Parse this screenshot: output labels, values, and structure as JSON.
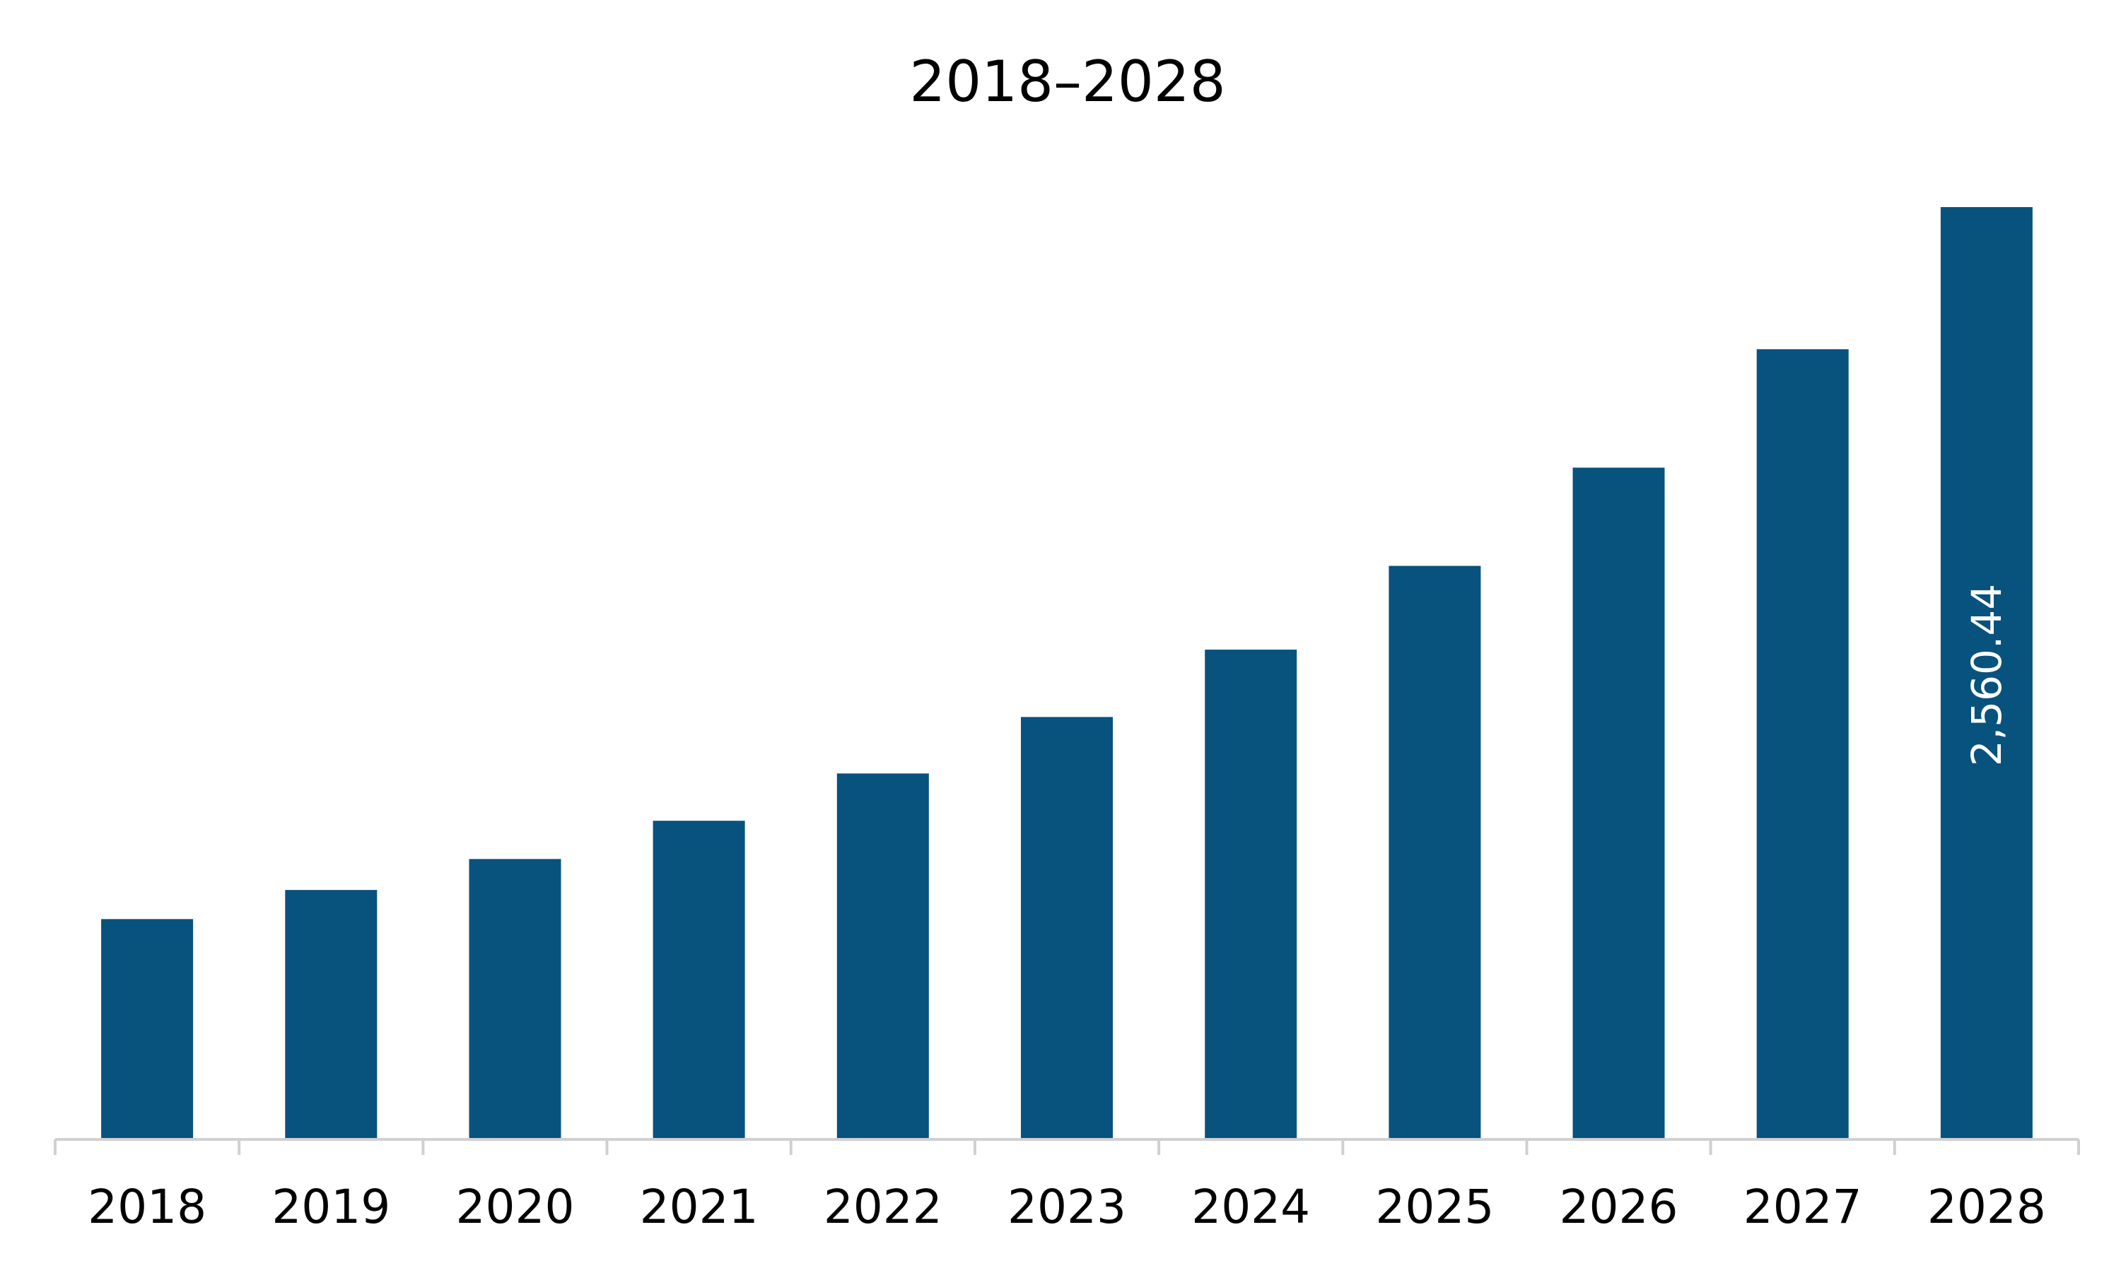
{
  "colors": {
    "bar": "#08527E",
    "axis": "#D0D0D0",
    "text": "#000000",
    "data_label": "#FFFFFF"
  },
  "chart_data": {
    "type": "bar",
    "title": "2018–2028",
    "xlabel": "",
    "ylabel": "",
    "categories": [
      "2018",
      "2019",
      "2020",
      "2021",
      "2022",
      "2023",
      "2024",
      "2025",
      "2026",
      "2027",
      "2028"
    ],
    "series": [
      {
        "values": [
          605,
          685,
          770,
          875,
          1005,
          1160,
          1345,
          1575,
          1845,
          2170,
          2560.44
        ]
      }
    ],
    "data_labels": [
      {
        "category": "2028",
        "text": "2,560.44",
        "orientation": "vertical"
      }
    ],
    "ylim": [
      0,
      2560.44
    ],
    "grid": false,
    "legend": "none"
  }
}
